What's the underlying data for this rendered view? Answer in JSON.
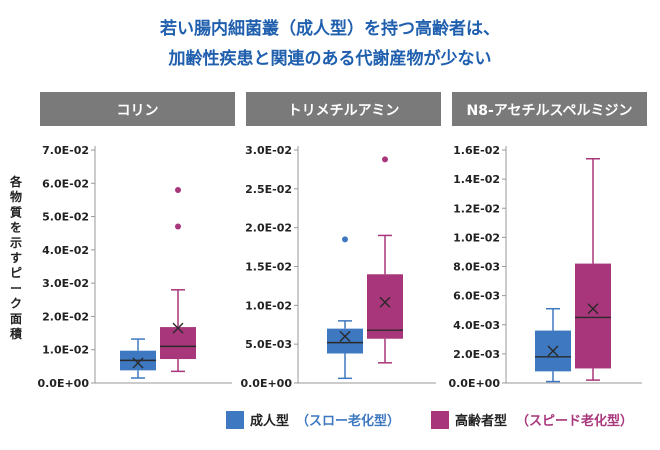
{
  "title_line1": "若い腸内細菌叢（成人型）を持つ高齢者は、",
  "title_line2": "加齢性疾患と関連のある代謝産物が少ない",
  "ylabel_chars": [
    "各",
    "物",
    "質",
    "を",
    "示",
    "す",
    "ピ",
    "ー",
    "ク",
    "面",
    "積"
  ],
  "colors": {
    "adult": "#3d78c0",
    "elderly": "#a8367a",
    "panel_header": "#7a7a7a"
  },
  "legend": {
    "adult_label": "成人型",
    "adult_sub": "（スロー老化型）",
    "elderly_label": "高齢者型",
    "elderly_sub": "（スピード老化型）"
  },
  "chart_data": [
    {
      "type": "box",
      "title": "コリン",
      "ylim": [
        0,
        0.07
      ],
      "ticks": [
        0,
        0.01,
        0.02,
        0.03,
        0.04,
        0.05,
        0.06,
        0.07
      ],
      "tick_labels": [
        "0.0E+00",
        "1.0E-02",
        "2.0E-02",
        "3.0E-02",
        "4.0E-02",
        "5.0E-02",
        "6.0E-02",
        "7.0E-02"
      ],
      "series": [
        {
          "name": "成人型",
          "min": 0.0015,
          "q1": 0.0038,
          "median": 0.0068,
          "q3": 0.0097,
          "max": 0.0132,
          "mean": 0.006,
          "outliers": []
        },
        {
          "name": "高齢者型",
          "min": 0.0035,
          "q1": 0.0072,
          "median": 0.011,
          "q3": 0.0168,
          "max": 0.028,
          "mean": 0.0165,
          "outliers": [
            0.047,
            0.058
          ]
        }
      ]
    },
    {
      "type": "box",
      "title": "トリメチルアミン",
      "ylim": [
        0,
        0.03
      ],
      "ticks": [
        0,
        0.005,
        0.01,
        0.015,
        0.02,
        0.025,
        0.03
      ],
      "tick_labels": [
        "0.0E+00",
        "5.0E-03",
        "1.0E-02",
        "1.5E-02",
        "2.0E-02",
        "2.5E-02",
        "3.0E-02"
      ],
      "series": [
        {
          "name": "成人型",
          "min": 0.0006,
          "q1": 0.0038,
          "median": 0.0052,
          "q3": 0.007,
          "max": 0.008,
          "mean": 0.006,
          "outliers": [
            0.0185
          ]
        },
        {
          "name": "高齢者型",
          "min": 0.0026,
          "q1": 0.0057,
          "median": 0.0068,
          "q3": 0.014,
          "max": 0.019,
          "mean": 0.0104,
          "outliers": [
            0.0288
          ]
        }
      ]
    },
    {
      "type": "box",
      "title": "N8-アセチルスペルミジン",
      "ylim": [
        0,
        0.016
      ],
      "ticks": [
        0,
        0.002,
        0.004,
        0.006,
        0.008,
        0.01,
        0.012,
        0.014,
        0.016
      ],
      "tick_labels": [
        "0.0E+00",
        "2.0E-03",
        "4.0E-03",
        "6.0E-03",
        "8.0E-03",
        "1.0E-02",
        "1.2E-02",
        "1.4E-02",
        "1.6E-02"
      ],
      "series": [
        {
          "name": "成人型",
          "min": 0.0001,
          "q1": 0.0008,
          "median": 0.0018,
          "q3": 0.0036,
          "max": 0.0051,
          "mean": 0.0022,
          "outliers": []
        },
        {
          "name": "高齢者型",
          "min": 0.0002,
          "q1": 0.001,
          "median": 0.0045,
          "q3": 0.0082,
          "max": 0.0154,
          "mean": 0.0051,
          "outliers": []
        }
      ]
    }
  ]
}
